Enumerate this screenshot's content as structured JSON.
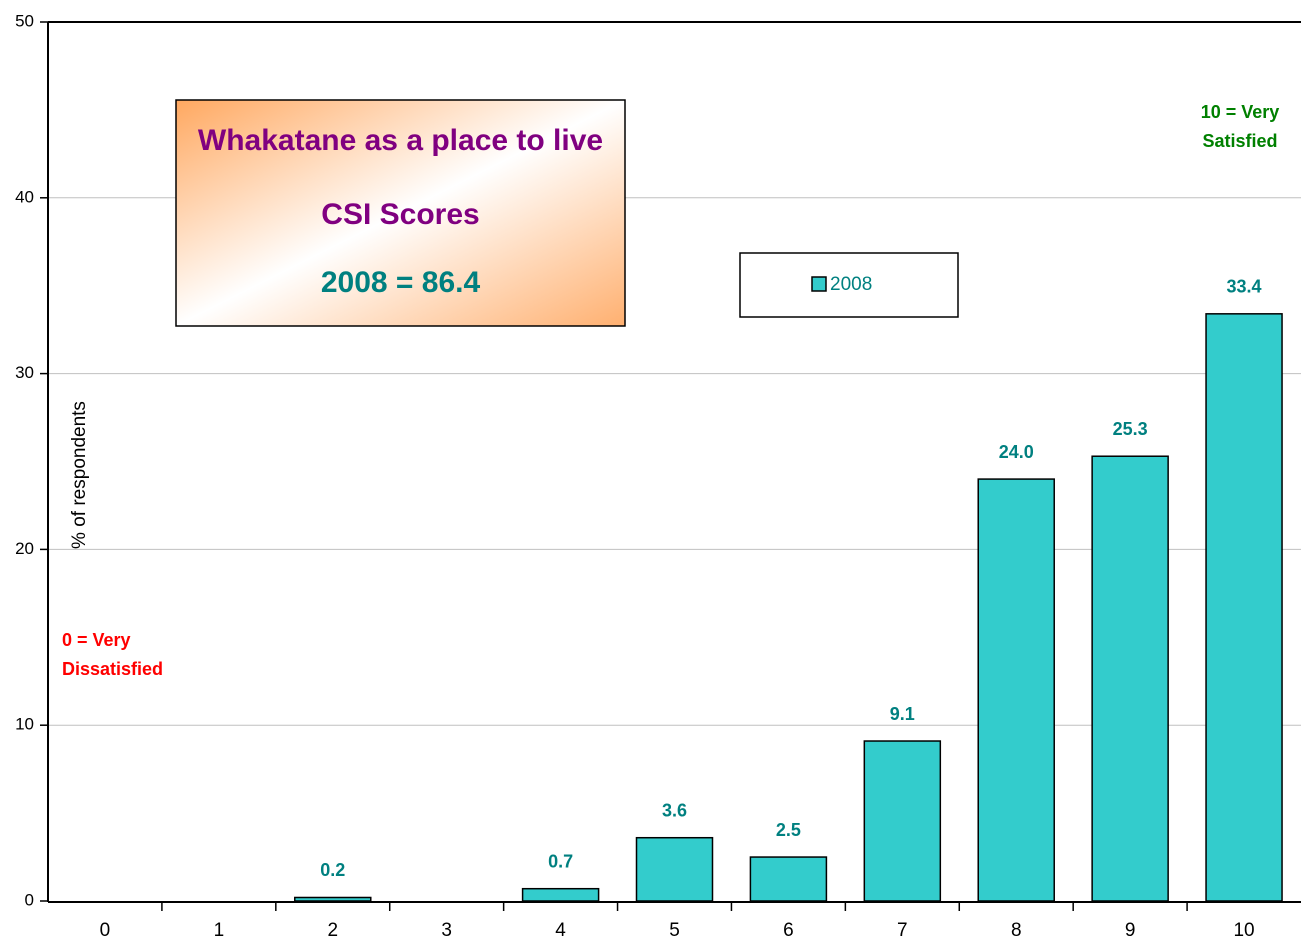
{
  "chart_data": {
    "type": "bar",
    "title": "Whakatane as a place to live",
    "subtitle": "CSI Scores",
    "score_note": "2008 = 86.4",
    "y_label": "% of respondents",
    "annotations": [
      "10 = Very Satisfied",
      "0 = Very Dissatisfied"
    ],
    "categories": [
      "0",
      "1",
      "2",
      "3",
      "4",
      "5",
      "6",
      "7",
      "8",
      "9",
      "10"
    ],
    "series": [
      {
        "name": "2008",
        "color": "#33cccc",
        "values": [
          null,
          null,
          0.2,
          null,
          0.7,
          3.6,
          2.5,
          9.1,
          24.0,
          25.3,
          33.4
        ],
        "value_labels": [
          null,
          null,
          "0.2",
          null,
          "0.7",
          "3.6",
          "2.5",
          "9.1",
          "24.0",
          "25.3",
          "33.4"
        ]
      }
    ],
    "ylim": [
      0,
      50
    ],
    "yticks": [
      0,
      10,
      20,
      30,
      40,
      50
    ],
    "grid": true,
    "legend": true
  }
}
